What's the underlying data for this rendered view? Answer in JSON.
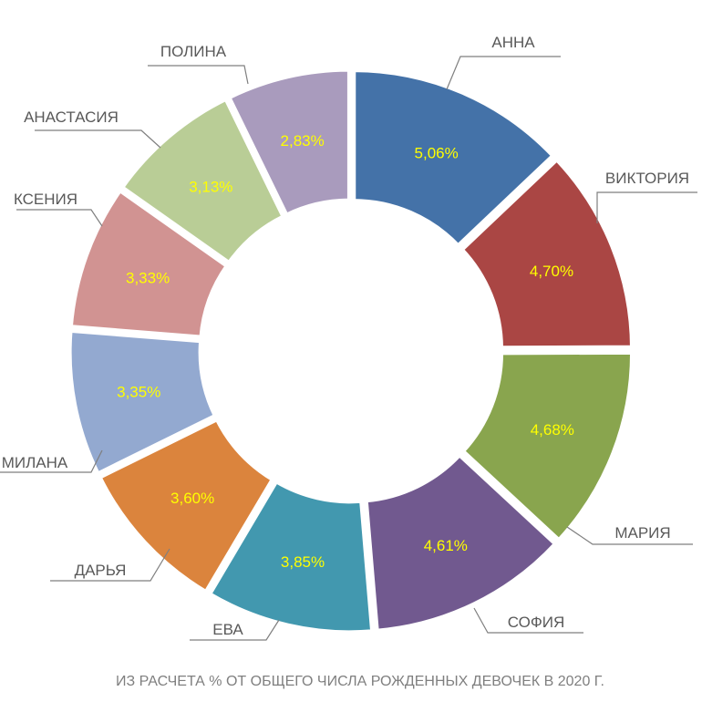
{
  "chart_data": {
    "type": "pie",
    "variant": "donut",
    "start": "12 o'clock, clockwise",
    "categories": [
      "АННА",
      "ВИКТОРИЯ",
      "МАРИЯ",
      "СОФИЯ",
      "ЕВА",
      "ДАРЬЯ",
      "МИЛАНА",
      "КСЕНИЯ",
      "АНАСТАСИЯ",
      "ПОЛИНА"
    ],
    "values": [
      5.06,
      4.7,
      4.68,
      4.61,
      3.85,
      3.6,
      3.35,
      3.33,
      3.13,
      2.83
    ],
    "value_labels": [
      "5,06%",
      "4,70%",
      "4,68%",
      "4,61%",
      "3,85%",
      "3,60%",
      "3,35%",
      "3,33%",
      "3,13%",
      "2,83%"
    ],
    "colors": [
      "#4472a8",
      "#aa4644",
      "#89a54e",
      "#71598f",
      "#4298af",
      "#db843d",
      "#93a9d0",
      "#d19392",
      "#b9cd96",
      "#a99bbd"
    ],
    "value_label_color": "#ffff00",
    "footnote": "ИЗ РАСЧЕТА % ОТ ОБЩЕГО ЧИСЛА РОЖДЕННЫХ ДЕВОЧЕК В 2020 Г."
  }
}
